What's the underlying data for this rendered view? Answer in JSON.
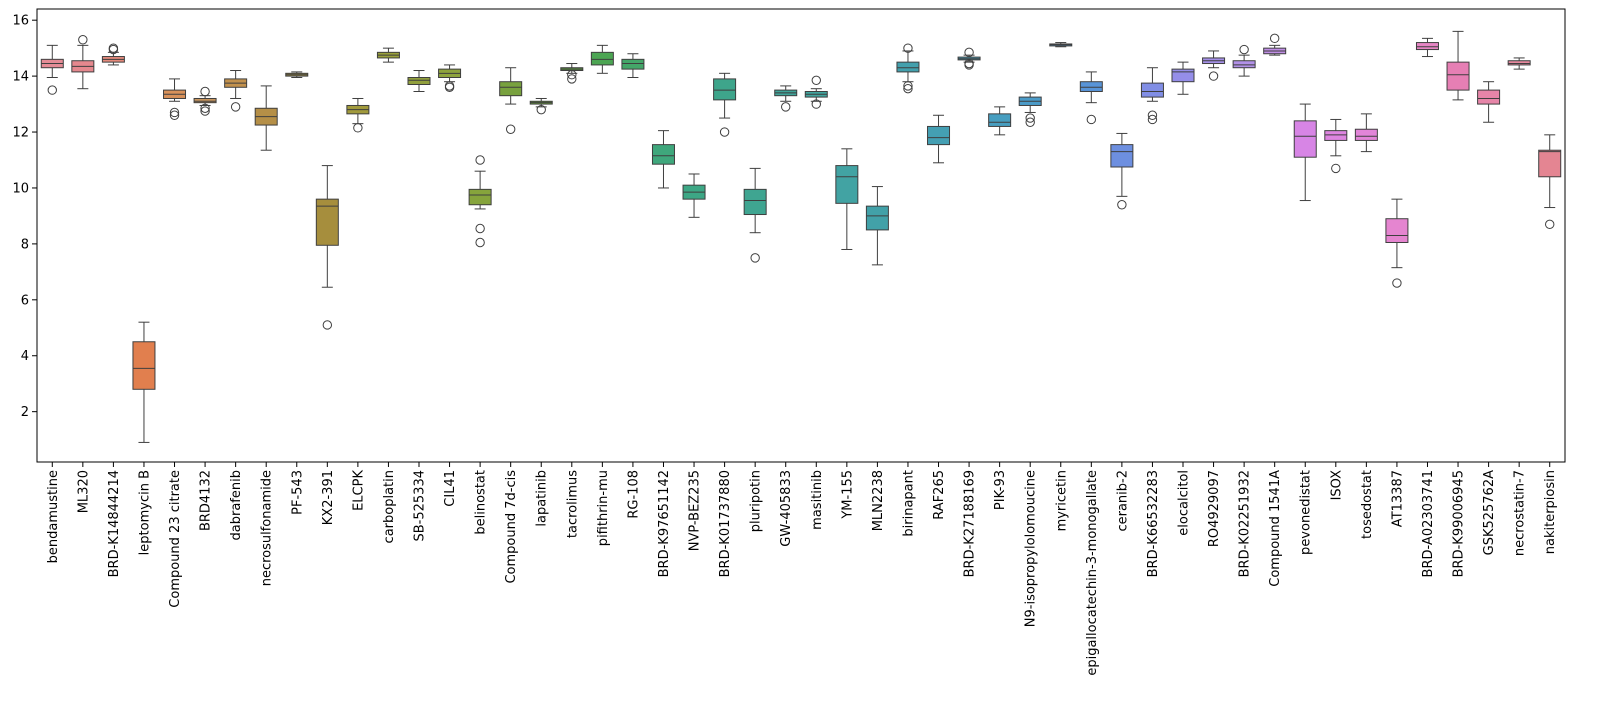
{
  "chart_data": {
    "type": "box",
    "title": "",
    "xlabel": "",
    "ylabel": "",
    "ylim": [
      0.2,
      16.4
    ],
    "yticks": [
      2,
      4,
      6,
      8,
      10,
      12,
      14,
      16
    ],
    "grid": false,
    "legend": "none",
    "categories": [
      {
        "label": "bendamustine",
        "color": "#e58c96",
        "whislo": 13.95,
        "q1": 14.3,
        "med": 14.45,
        "q3": 14.6,
        "whishi": 15.1,
        "fliers": [
          13.5
        ]
      },
      {
        "label": "ML320",
        "color": "#e5888e",
        "whislo": 13.55,
        "q1": 14.15,
        "med": 14.35,
        "q3": 14.55,
        "whishi": 15.1,
        "fliers": [
          15.3
        ]
      },
      {
        "label": "BRD-K14844214",
        "color": "#e58a7c",
        "whislo": 14.4,
        "q1": 14.5,
        "med": 14.6,
        "q3": 14.7,
        "whishi": 14.85,
        "fliers": [
          14.95,
          15.0
        ]
      },
      {
        "label": "leptomycin B",
        "color": "#e17f4e",
        "whislo": 0.9,
        "q1": 2.8,
        "med": 3.55,
        "q3": 4.5,
        "whishi": 5.2,
        "fliers": []
      },
      {
        "label": "Compound 23 citrate",
        "color": "#d8915a",
        "whislo": 13.1,
        "q1": 13.2,
        "med": 13.35,
        "q3": 13.5,
        "whishi": 13.9,
        "fliers": [
          12.7,
          12.6
        ]
      },
      {
        "label": "BRD4132",
        "color": "#c9965e",
        "whislo": 12.95,
        "q1": 13.05,
        "med": 13.1,
        "q3": 13.2,
        "whishi": 13.3,
        "fliers": [
          13.45,
          12.85,
          12.75
        ]
      },
      {
        "label": "dabrafenib",
        "color": "#c2914d",
        "whislo": 13.2,
        "q1": 13.6,
        "med": 13.75,
        "q3": 13.9,
        "whishi": 14.2,
        "fliers": [
          12.9
        ]
      },
      {
        "label": "necrosulfonamide",
        "color": "#b58f47",
        "whislo": 11.35,
        "q1": 12.25,
        "med": 12.55,
        "q3": 12.85,
        "whishi": 13.65,
        "fliers": []
      },
      {
        "label": "PF-543",
        "color": "#a99440",
        "whislo": 13.95,
        "q1": 14.0,
        "med": 14.05,
        "q3": 14.1,
        "whishi": 14.15,
        "fliers": []
      },
      {
        "label": "KX2-391",
        "color": "#a68e3d",
        "whislo": 6.45,
        "q1": 7.95,
        "med": 9.35,
        "q3": 9.6,
        "whishi": 10.8,
        "fliers": [
          5.1
        ]
      },
      {
        "label": "ELCPK",
        "color": "#a19a3c",
        "whislo": 12.3,
        "q1": 12.65,
        "med": 12.8,
        "q3": 12.95,
        "whishi": 13.2,
        "fliers": [
          12.15
        ]
      },
      {
        "label": "carboplatin",
        "color": "#9aa13b",
        "whislo": 14.5,
        "q1": 14.65,
        "med": 14.75,
        "q3": 14.85,
        "whishi": 15.0,
        "fliers": []
      },
      {
        "label": "SB-525334",
        "color": "#92a03d",
        "whislo": 13.45,
        "q1": 13.7,
        "med": 13.85,
        "q3": 13.95,
        "whishi": 14.2,
        "fliers": []
      },
      {
        "label": "CIL41",
        "color": "#8ea33d",
        "whislo": 13.8,
        "q1": 13.95,
        "med": 14.1,
        "q3": 14.25,
        "whishi": 14.4,
        "fliers": [
          13.65,
          13.6
        ]
      },
      {
        "label": "belinostat",
        "color": "#86a43c",
        "whislo": 9.25,
        "q1": 9.4,
        "med": 9.75,
        "q3": 9.95,
        "whishi": 10.6,
        "fliers": [
          11.0,
          8.55,
          8.05
        ]
      },
      {
        "label": "Compound 7d-cis",
        "color": "#78a13e",
        "whislo": 13.0,
        "q1": 13.3,
        "med": 13.6,
        "q3": 13.8,
        "whishi": 14.3,
        "fliers": [
          12.1
        ]
      },
      {
        "label": "lapatinib",
        "color": "#6aa23e",
        "whislo": 12.9,
        "q1": 13.0,
        "med": 13.05,
        "q3": 13.1,
        "whishi": 13.2,
        "fliers": [
          12.8
        ]
      },
      {
        "label": "tacrolimus",
        "color": "#5ea43f",
        "whislo": 14.1,
        "q1": 14.2,
        "med": 14.25,
        "q3": 14.3,
        "whishi": 14.45,
        "fliers": [
          14.05,
          13.9
        ]
      },
      {
        "label": "pifithrin-mu",
        "color": "#4ca553",
        "whislo": 14.1,
        "q1": 14.4,
        "med": 14.6,
        "q3": 14.85,
        "whishi": 15.1,
        "fliers": []
      },
      {
        "label": "RG-108",
        "color": "#44a669",
        "whislo": 13.95,
        "q1": 14.25,
        "med": 14.45,
        "q3": 14.6,
        "whishi": 14.8,
        "fliers": []
      },
      {
        "label": "BRD-K97651142",
        "color": "#3fa77c",
        "whislo": 10.0,
        "q1": 10.85,
        "med": 11.15,
        "q3": 11.55,
        "whishi": 12.05,
        "fliers": []
      },
      {
        "label": "NVP-BEZ235",
        "color": "#3da785",
        "whislo": 8.95,
        "q1": 9.6,
        "med": 9.85,
        "q3": 10.1,
        "whishi": 10.5,
        "fliers": []
      },
      {
        "label": "BRD-K01737880",
        "color": "#3ea58b",
        "whislo": 12.5,
        "q1": 13.15,
        "med": 13.5,
        "q3": 13.9,
        "whishi": 14.1,
        "fliers": [
          12.0
        ]
      },
      {
        "label": "pluripotin",
        "color": "#3fa591",
        "whislo": 8.4,
        "q1": 9.05,
        "med": 9.55,
        "q3": 9.95,
        "whishi": 10.7,
        "fliers": [
          7.5
        ]
      },
      {
        "label": "GW-405833",
        "color": "#40a59a",
        "whislo": 13.1,
        "q1": 13.3,
        "med": 13.4,
        "q3": 13.5,
        "whishi": 13.65,
        "fliers": [
          12.9
        ]
      },
      {
        "label": "masitinib",
        "color": "#41a59f",
        "whislo": 13.1,
        "q1": 13.25,
        "med": 13.35,
        "q3": 13.45,
        "whishi": 13.55,
        "fliers": [
          13.85,
          13.0
        ]
      },
      {
        "label": "YM-155",
        "color": "#42a3a3",
        "whislo": 7.8,
        "q1": 9.45,
        "med": 10.4,
        "q3": 10.8,
        "whishi": 11.4,
        "fliers": []
      },
      {
        "label": "MLN2238",
        "color": "#42a1a8",
        "whislo": 7.25,
        "q1": 8.5,
        "med": 9.0,
        "q3": 9.35,
        "whishi": 10.05,
        "fliers": []
      },
      {
        "label": "birinapant",
        "color": "#43a0ad",
        "whislo": 13.8,
        "q1": 14.15,
        "med": 14.3,
        "q3": 14.5,
        "whishi": 14.9,
        "fliers": [
          15.0,
          13.65,
          13.55
        ]
      },
      {
        "label": "RAF265",
        "color": "#449fb3",
        "whislo": 10.9,
        "q1": 11.55,
        "med": 11.8,
        "q3": 12.2,
        "whishi": 12.6,
        "fliers": []
      },
      {
        "label": "BRD-K27188169",
        "color": "#459eb8",
        "whislo": 14.5,
        "q1": 14.58,
        "med": 14.62,
        "q3": 14.68,
        "whishi": 14.75,
        "fliers": [
          14.85,
          14.45,
          14.4
        ]
      },
      {
        "label": "PIK-93",
        "color": "#479ec0",
        "whislo": 11.9,
        "q1": 12.2,
        "med": 12.35,
        "q3": 12.65,
        "whishi": 12.9,
        "fliers": []
      },
      {
        "label": "N9-isopropylolomoucine",
        "color": "#4b9bc8",
        "whislo": 12.7,
        "q1": 12.95,
        "med": 13.1,
        "q3": 13.25,
        "whishi": 13.4,
        "fliers": [
          12.5,
          12.35
        ]
      },
      {
        "label": "myricetin",
        "color": "#4e98cf",
        "whislo": 15.05,
        "q1": 15.08,
        "med": 15.12,
        "q3": 15.15,
        "whishi": 15.2,
        "fliers": []
      },
      {
        "label": "epigallocatechin-3-monogallate",
        "color": "#5894d8",
        "whislo": 13.05,
        "q1": 13.45,
        "med": 13.6,
        "q3": 13.8,
        "whishi": 14.15,
        "fliers": [
          12.45
        ]
      },
      {
        "label": "ceranib-2",
        "color": "#6d8fe0",
        "whislo": 9.7,
        "q1": 10.75,
        "med": 11.3,
        "q3": 11.55,
        "whishi": 11.95,
        "fliers": [
          9.4
        ]
      },
      {
        "label": "BRD-K66532283",
        "color": "#818ee5",
        "whislo": 13.1,
        "q1": 13.25,
        "med": 13.45,
        "q3": 13.75,
        "whishi": 14.3,
        "fliers": [
          12.6,
          12.45
        ]
      },
      {
        "label": "elocalcitol",
        "color": "#958ee9",
        "whislo": 13.35,
        "q1": 13.8,
        "med": 14.15,
        "q3": 14.25,
        "whishi": 14.5,
        "fliers": []
      },
      {
        "label": "RO4929097",
        "color": "#a590e8",
        "whislo": 14.3,
        "q1": 14.45,
        "med": 14.55,
        "q3": 14.65,
        "whishi": 14.9,
        "fliers": [
          14.0
        ]
      },
      {
        "label": "BRD-K02251932",
        "color": "#b291e8",
        "whislo": 14.0,
        "q1": 14.3,
        "med": 14.4,
        "q3": 14.55,
        "whishi": 14.75,
        "fliers": [
          14.95
        ]
      },
      {
        "label": "Compound 1541A",
        "color": "#c08ee6",
        "whislo": 14.75,
        "q1": 14.8,
        "med": 14.9,
        "q3": 15.0,
        "whishi": 15.1,
        "fliers": [
          15.35
        ]
      },
      {
        "label": "pevonedistat",
        "color": "#d785e5",
        "whislo": 9.55,
        "q1": 11.1,
        "med": 11.85,
        "q3": 12.4,
        "whishi": 13.0,
        "fliers": []
      },
      {
        "label": "ISOX",
        "color": "#dd85e0",
        "whislo": 11.15,
        "q1": 11.7,
        "med": 11.9,
        "q3": 12.05,
        "whishi": 12.45,
        "fliers": [
          10.7
        ]
      },
      {
        "label": "tosedostat",
        "color": "#e285d8",
        "whislo": 11.3,
        "q1": 11.7,
        "med": 11.85,
        "q3": 12.1,
        "whishi": 12.65,
        "fliers": []
      },
      {
        "label": "AT13387",
        "color": "#e585d0",
        "whislo": 7.15,
        "q1": 8.05,
        "med": 8.3,
        "q3": 8.9,
        "whishi": 9.6,
        "fliers": [
          6.6
        ]
      },
      {
        "label": "BRD-A02303741",
        "color": "#e685c4",
        "whislo": 14.7,
        "q1": 14.95,
        "med": 15.05,
        "q3": 15.2,
        "whishi": 15.35,
        "fliers": []
      },
      {
        "label": "BRD-K99006945",
        "color": "#e67fb4",
        "whislo": 13.15,
        "q1": 13.5,
        "med": 14.05,
        "q3": 14.5,
        "whishi": 15.6,
        "fliers": []
      },
      {
        "label": "GSK525762A",
        "color": "#e685a8",
        "whislo": 12.35,
        "q1": 13.0,
        "med": 13.2,
        "q3": 13.5,
        "whishi": 13.8,
        "fliers": []
      },
      {
        "label": "necrostatin-7",
        "color": "#e6889e",
        "whislo": 14.25,
        "q1": 14.4,
        "med": 14.45,
        "q3": 14.55,
        "whishi": 14.65,
        "fliers": []
      },
      {
        "label": "nakiterpiosin",
        "color": "#e48592",
        "whislo": 9.3,
        "q1": 10.4,
        "med": 11.3,
        "q3": 11.35,
        "whishi": 11.9,
        "fliers": [
          8.7
        ]
      }
    ]
  }
}
